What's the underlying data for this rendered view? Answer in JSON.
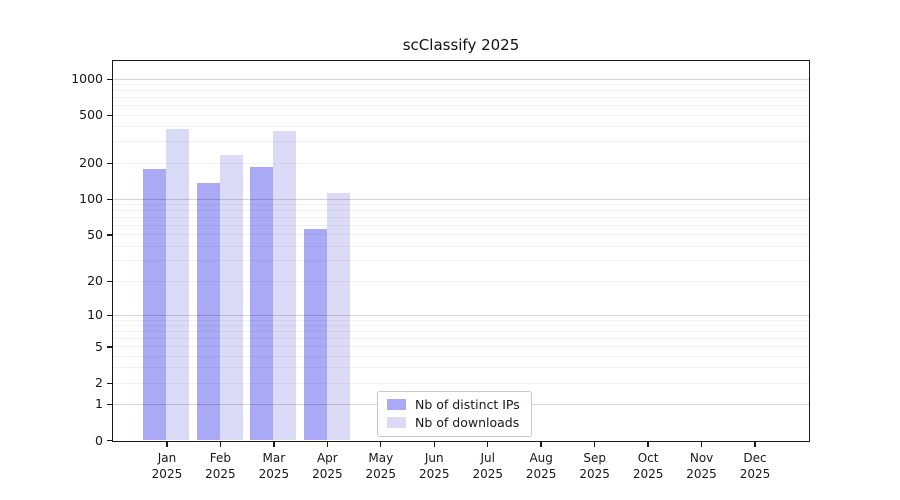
{
  "chart_data": {
    "type": "bar",
    "title": "scClassify 2025",
    "x": {
      "months": [
        "Jan",
        "Feb",
        "Mar",
        "Apr",
        "May",
        "Jun",
        "Jul",
        "Aug",
        "Sep",
        "Oct",
        "Nov",
        "Dec"
      ],
      "year": "2025"
    },
    "series": [
      {
        "name": "Nb of distinct IPs",
        "color": "#a9a9f5",
        "values": [
          178,
          136,
          183,
          55,
          0,
          0,
          0,
          0,
          0,
          0,
          0,
          0
        ]
      },
      {
        "name": "Nb of downloads",
        "color": "#dbdbf7",
        "values": [
          380,
          233,
          365,
          111,
          0,
          0,
          0,
          0,
          0,
          0,
          0,
          0
        ]
      }
    ],
    "y_ticks": [
      0,
      1,
      2,
      5,
      10,
      20,
      50,
      100,
      200,
      500,
      1000
    ],
    "y_scale": "log1p",
    "ylim": [
      0,
      1400
    ],
    "grid": "both",
    "legend_position": "lower center"
  },
  "colors": {
    "spine": "#1a1a1a",
    "grid_major": "rgba(0,0,0,0.17)",
    "grid_minor": "rgba(0,0,0,0.05)",
    "bar_ips": "#a9a9f5",
    "bar_downloads": "#dbdbf7",
    "legend_border": "#c9c9c9"
  }
}
